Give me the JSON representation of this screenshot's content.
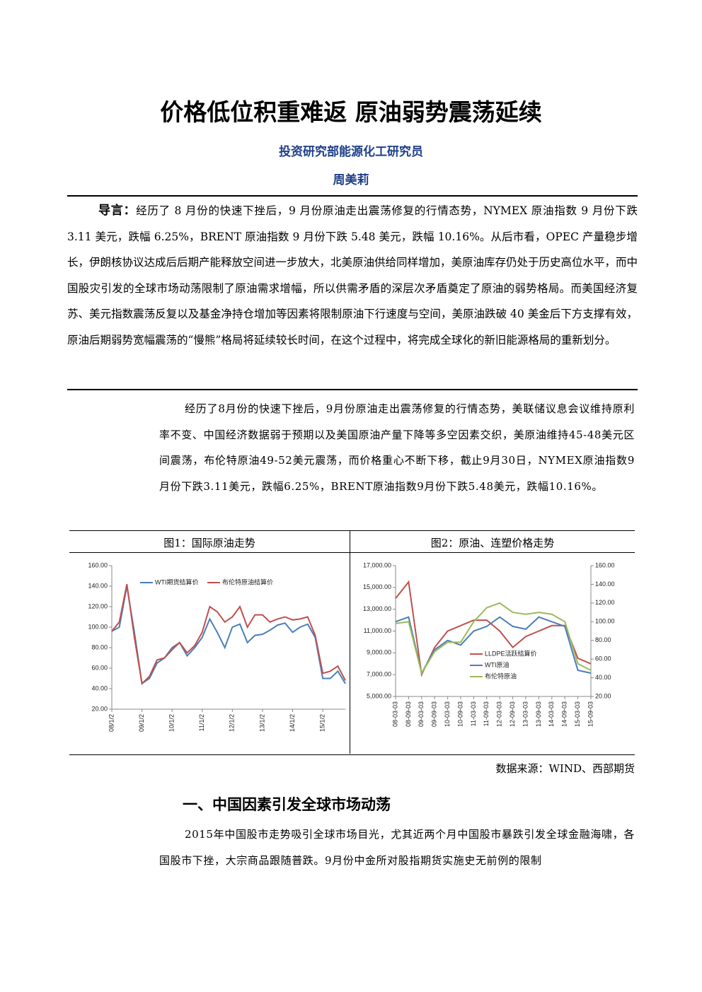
{
  "header": {
    "title": "价格低位积重难返 原油弱势震荡延续",
    "department": "投资研究部能源化工研究员",
    "author": "周美莉"
  },
  "intro": {
    "label": "导言：",
    "text": "经历了 8 月份的快速下挫后，9 月份原油走出震荡修复的行情态势，NYMEX 原油指数 9 月份下跌 3.11 美元，跌幅 6.25%，BRENT 原油指数 9 月份下跌 5.48 美元，跌幅 10.16%。从后市看，OPEC 产量稳步增长，伊朗核协议达成后后期产能释放空间进一步放大，北美原油供给同样增加，美原油库存仍处于历史高位水平，而中国股灾引发的全球市场动荡限制了原油需求增幅，所以供需矛盾的深层次矛盾奠定了原油的弱势格局。而美国经济复苏、美元指数震荡反复以及基金净持仓增加等因素将限制原油下行速度与空间，美原油跌破 40 美金后下方支撑有效，原油后期弱势宽幅震荡的“慢熊”格局将延续较长时间，在这个过程中，将完成全球化的新旧能源格局的重新划分。"
  },
  "paragraph": "经历了8月份的快速下挫后，9月份原油走出震荡修复的行情态势，美联储议息会议维持原利率不变、中国经济数据弱于预期以及美国原油产量下降等多空因素交织，美原油维持45-48美元区间震荡，布伦特原油49-52美元震荡，而价格重心不断下移，截止9月30日，NYMEX原油指数9月份下跌3.11美元，跌幅6.25%，BRENT原油指数9月份下跌5.48美元，跌幅10.16%。",
  "source": "数据来源：WIND、西部期货",
  "section": {
    "heading": "一、中国因素引发全球市场动荡",
    "text": "2015年中国股市走势吸引全球市场目光，尤其近两个月中国股市暴跌引发全球金融海啸，各国股市下挫，大宗商品跟随普跌。9月份中金所对股指期货实施史无前例的限制"
  },
  "chart_data": [
    {
      "type": "line",
      "title": "图1：国际原油走势",
      "legend": "top",
      "categories": [
        "08/1/2",
        null,
        null,
        null,
        "09/1/2",
        null,
        null,
        null,
        "10/1/2",
        null,
        null,
        null,
        "11/1/2",
        null,
        null,
        null,
        "12/1/2",
        null,
        null,
        null,
        "13/1/2",
        null,
        null,
        null,
        "14/1/2",
        null,
        null,
        null,
        "15/1/2",
        null,
        null,
        null
      ],
      "ylim": [
        20,
        160
      ],
      "yticks": [
        {
          "value": 20,
          "label": "20.00"
        },
        {
          "value": 40,
          "label": "40.00"
        },
        {
          "value": 60,
          "label": "60.00"
        },
        {
          "value": 80,
          "label": "80.00"
        },
        {
          "value": 100,
          "label": "100.00"
        },
        {
          "value": 120,
          "label": "120.00"
        },
        {
          "value": 140,
          "label": "140.00"
        },
        {
          "value": 160,
          "label": "160.00"
        }
      ],
      "series": [
        {
          "name": "WTI期货结算价",
          "color": "#4a7ebb",
          "values": [
            96,
            100,
            140,
            95,
            45,
            50,
            65,
            70,
            80,
            85,
            72,
            80,
            90,
            108,
            95,
            80,
            100,
            103,
            85,
            92,
            93,
            97,
            102,
            104,
            95,
            100,
            103,
            90,
            50,
            50,
            57,
            45
          ]
        },
        {
          "name": "布伦特原油结算价",
          "color": "#c0504d",
          "values": [
            96,
            105,
            142,
            90,
            45,
            52,
            68,
            70,
            78,
            85,
            75,
            82,
            95,
            120,
            115,
            105,
            110,
            120,
            100,
            112,
            112,
            105,
            108,
            110,
            107,
            108,
            110,
            92,
            55,
            57,
            62,
            48
          ]
        }
      ]
    },
    {
      "type": "line",
      "title": "图2：原油、连塑价格走势",
      "legend": "bottom-left",
      "categories": [
        "08-03-03",
        "08-09-03",
        "09-03-03",
        "09-09-03",
        "10-03-03",
        "10-09-03",
        "11-03-03",
        "11-09-03",
        "12-03-03",
        "12-09-03",
        "13-03-03",
        "13-09-03",
        "14-03-03",
        "14-09-03",
        "15-03-03",
        "15-09-03"
      ],
      "ylim": [
        5000,
        17000
      ],
      "yticks": [
        {
          "value": 5000,
          "label": "5,000.00"
        },
        {
          "value": 7000,
          "label": "7,000.00"
        },
        {
          "value": 9000,
          "label": "9,000.00"
        },
        {
          "value": 11000,
          "label": "11,000.00"
        },
        {
          "value": 13000,
          "label": "13,000.00"
        },
        {
          "value": 15000,
          "label": "15,000.00"
        },
        {
          "value": 17000,
          "label": "17,000.00"
        }
      ],
      "y2lim": [
        20,
        160
      ],
      "y2ticks": [
        {
          "value": 20,
          "label": "20.00"
        },
        {
          "value": 40,
          "label": "40.00"
        },
        {
          "value": 60,
          "label": "60.00"
        },
        {
          "value": 80,
          "label": "80.00"
        },
        {
          "value": 100,
          "label": "100.00"
        },
        {
          "value": 120,
          "label": "120.00"
        },
        {
          "value": 140,
          "label": "140.00"
        },
        {
          "value": 160,
          "label": "160.00"
        }
      ],
      "series": [
        {
          "name": "LLDPE活跃结算价",
          "color": "#c0504d",
          "values": [
            14000,
            15500,
            7000,
            9500,
            11000,
            11500,
            12000,
            12000,
            11000,
            9500,
            10500,
            11000,
            11500,
            11500,
            8500,
            8000
          ]
        },
        {
          "name": "WTI原油",
          "color": "#4a7ebb",
          "axis": "y2",
          "values": [
            100,
            105,
            45,
            70,
            80,
            75,
            90,
            95,
            105,
            95,
            92,
            105,
            100,
            95,
            48,
            45
          ]
        },
        {
          "name": "布伦特原油",
          "color": "#9bbb59",
          "axis": "y2",
          "values": [
            98,
            100,
            45,
            68,
            78,
            78,
            100,
            115,
            120,
            110,
            108,
            110,
            108,
            100,
            55,
            48
          ]
        }
      ]
    }
  ]
}
